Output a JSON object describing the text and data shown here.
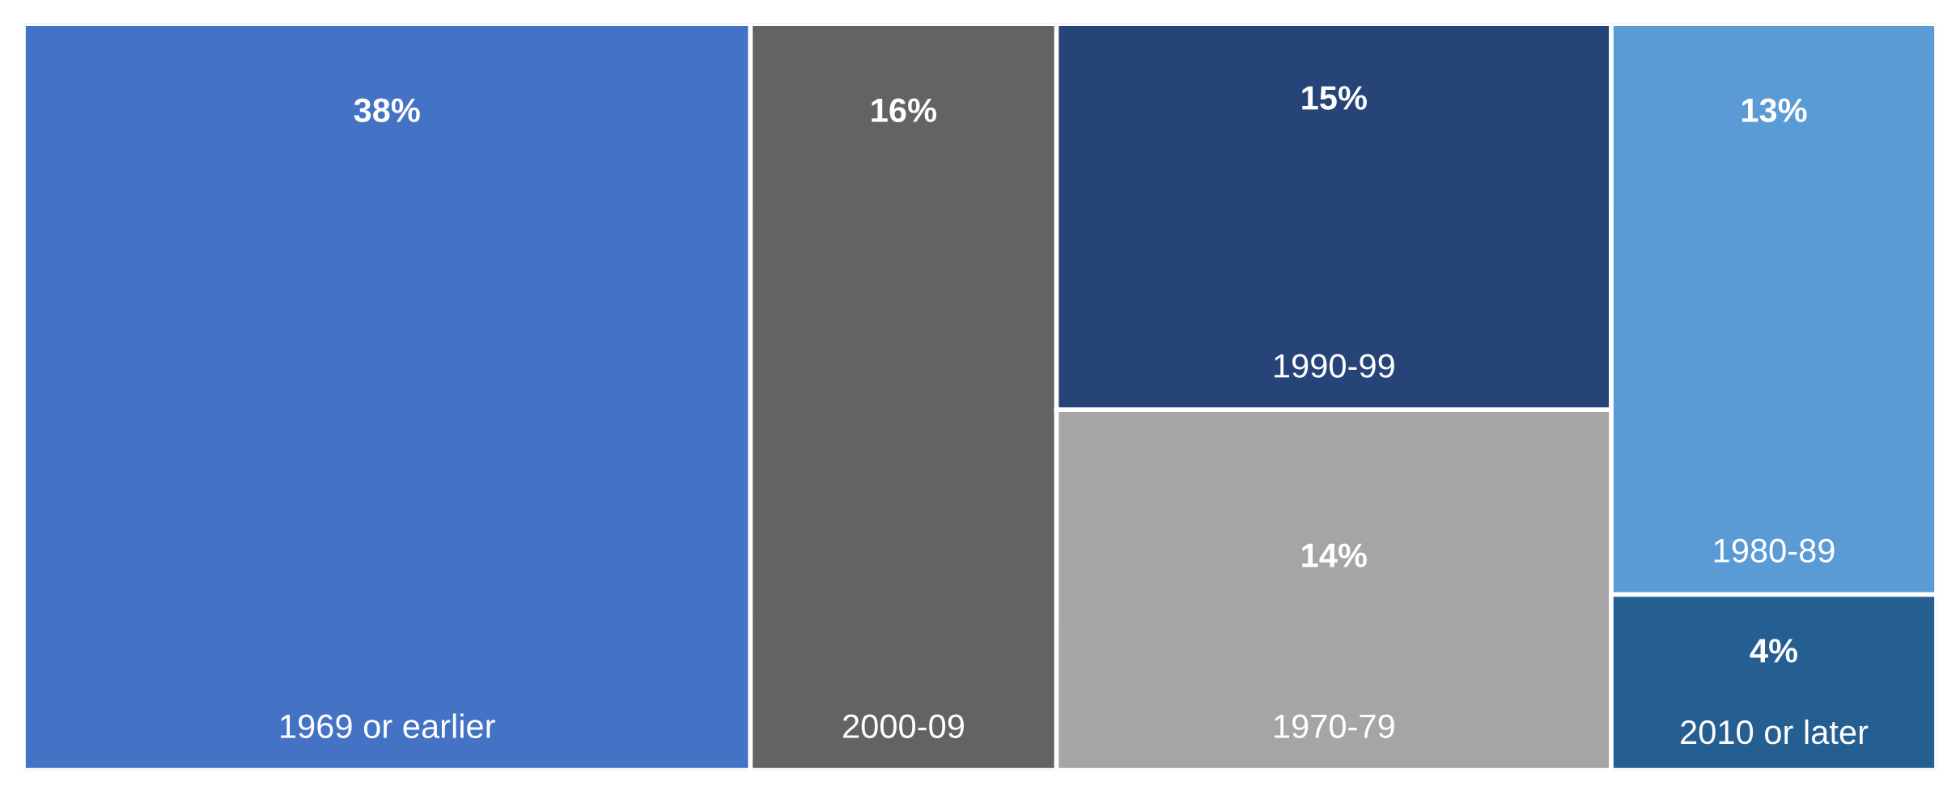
{
  "chart_data": {
    "type": "other",
    "categories": [
      "1969 or earlier",
      "2000-09",
      "1990-99",
      "1970-79",
      "1980-89",
      "2010 or later"
    ],
    "values": [
      38,
      16,
      15,
      14,
      13,
      4
    ],
    "value_labels": [
      "38%",
      "16%",
      "15%",
      "14%",
      "13%",
      "4%"
    ],
    "colors": [
      "#4472c4",
      "#636363",
      "#264478",
      "#a5a5a5",
      "#5b9bd5",
      "#255e91"
    ]
  }
}
